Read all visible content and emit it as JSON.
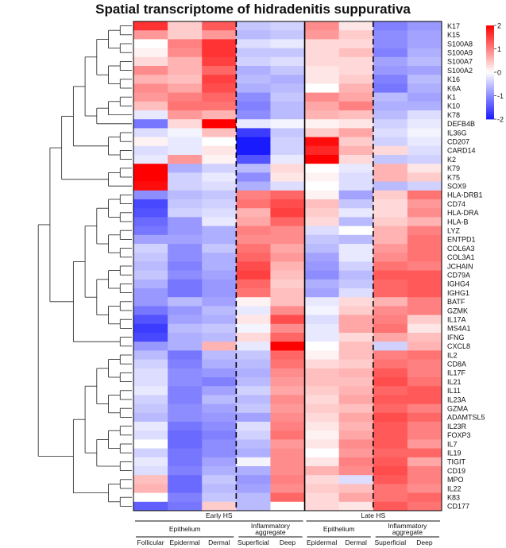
{
  "chart_data": {
    "type": "heatmap",
    "title": "Spatial transcriptome of hidradenitis suppurativa",
    "columns": [
      "Follicular",
      "Epidermal",
      "Dermal",
      "Superficial",
      "Deep",
      "Epidermal",
      "Dermal",
      "Superficial",
      "Deep"
    ],
    "column_groups": [
      {
        "name": "Early HS",
        "start": 0,
        "end": 4,
        "subgroups": [
          {
            "name": "Epithelium",
            "start": 0,
            "end": 2
          },
          {
            "name": "Inflammatory aggregate",
            "start": 3,
            "end": 4
          }
        ]
      },
      {
        "name": "Late HS",
        "start": 5,
        "end": 8,
        "subgroups": [
          {
            "name": "Epithelium",
            "start": 5,
            "end": 6
          },
          {
            "name": "Inflammatory aggregate",
            "start": 7,
            "end": 8
          }
        ]
      }
    ],
    "rows": [
      "K17",
      "K15",
      "S100A8",
      "S100A9",
      "S100A7",
      "S100A2",
      "K16",
      "K6A",
      "K1",
      "K10",
      "K78",
      "DEFB4B",
      "IL36G",
      "CD207",
      "CARD14",
      "K2",
      "K79",
      "K75",
      "SOX9",
      "HLA-DRB1",
      "CD74",
      "HLA-DRA",
      "HLA-B",
      "LYZ",
      "ENTPD1",
      "COL6A3",
      "COL3A1",
      "JCHAIN",
      "CD79A",
      "IGHG4",
      "IGHG1",
      "BATF",
      "GZMK",
      "IL17A",
      "MS4A1",
      "IFNG",
      "CXCL8",
      "IL2",
      "CD8A",
      "IL17F",
      "IL21",
      "IL11",
      "IL23A",
      "GZMA",
      "ADAMTSL5",
      "IL23R",
      "FOXP3",
      "IL7",
      "IL19",
      "TIGIT",
      "CD19",
      "MPO",
      "IL22",
      "K83",
      "CD177"
    ],
    "values": [
      [
        1.6,
        0.4,
        1.3,
        -0.5,
        -0.4,
        0.9,
        0.2,
        -1.1,
        -0.9
      ],
      [
        0.8,
        0.4,
        0.8,
        -0.6,
        -0.5,
        0.8,
        0.4,
        -1.0,
        -0.8
      ],
      [
        0.0,
        1.0,
        1.6,
        -0.3,
        -0.2,
        0.3,
        0.3,
        -1.0,
        -0.8
      ],
      [
        0.1,
        0.9,
        1.6,
        -0.5,
        -0.5,
        0.3,
        0.5,
        -1.1,
        -0.7
      ],
      [
        0.3,
        0.6,
        1.5,
        -0.4,
        -0.3,
        0.3,
        0.3,
        -0.8,
        -0.6
      ],
      [
        0.9,
        0.6,
        1.2,
        -0.7,
        -0.5,
        0.2,
        0.3,
        -0.9,
        -0.8
      ],
      [
        0.6,
        0.5,
        1.5,
        -0.6,
        -0.7,
        0.2,
        0.4,
        -1.1,
        -0.6
      ],
      [
        0.9,
        0.7,
        1.4,
        -0.7,
        -0.6,
        0.0,
        0.6,
        -1.2,
        -0.7
      ],
      [
        0.8,
        1.0,
        1.2,
        -1.0,
        -0.5,
        0.9,
        0.7,
        -0.6,
        -0.8
      ],
      [
        0.5,
        1.1,
        1.1,
        -1.1,
        -0.6,
        0.7,
        1.0,
        -0.7,
        -0.7
      ],
      [
        -0.2,
        0.8,
        0.6,
        -1.0,
        -0.6,
        0.6,
        0.5,
        -0.6,
        -0.3
      ],
      [
        -1.2,
        0.3,
        2.0,
        -0.2,
        -0.1,
        0.1,
        0.2,
        -0.4,
        -0.2
      ],
      [
        -0.3,
        -0.1,
        0.5,
        -1.7,
        -0.5,
        0.4,
        0.7,
        -0.3,
        -0.1
      ],
      [
        0.1,
        -0.2,
        0.0,
        -2.0,
        -0.4,
        1.9,
        0.4,
        -0.4,
        -0.2
      ],
      [
        -0.3,
        -0.2,
        0.2,
        -2.0,
        -0.4,
        1.7,
        0.6,
        0.3,
        -0.3
      ],
      [
        -0.2,
        0.8,
        0.1,
        -1.5,
        -0.2,
        2.0,
        0.3,
        -0.5,
        -0.4
      ],
      [
        2.0,
        -0.7,
        -0.4,
        -0.6,
        0.3,
        0.0,
        -0.2,
        0.6,
        0.2
      ],
      [
        2.0,
        -0.4,
        -0.2,
        -1.0,
        0.2,
        0.1,
        -0.3,
        0.6,
        0.4
      ],
      [
        1.9,
        -0.4,
        -0.3,
        -0.7,
        -0.3,
        0.0,
        -0.3,
        -0.6,
        -0.4
      ],
      [
        -1.0,
        -0.6,
        -0.5,
        1.0,
        1.2,
        0.1,
        -0.8,
        0.4,
        1.1
      ],
      [
        -1.6,
        -0.5,
        -0.4,
        1.1,
        1.4,
        0.5,
        -0.5,
        0.3,
        0.8
      ],
      [
        -1.5,
        -0.4,
        -0.3,
        0.6,
        1.5,
        0.4,
        -0.2,
        0.3,
        0.9
      ],
      [
        -1.3,
        -0.9,
        -0.2,
        0.7,
        1.2,
        0.3,
        -0.6,
        0.4,
        0.6
      ],
      [
        -1.2,
        -0.9,
        -0.7,
        1.0,
        0.9,
        -0.3,
        0.0,
        0.6,
        1.0
      ],
      [
        -0.8,
        -0.8,
        -0.7,
        0.9,
        0.9,
        -0.5,
        -0.6,
        0.6,
        1.1
      ],
      [
        -0.4,
        -1.0,
        -0.5,
        1.1,
        0.7,
        -0.6,
        -0.2,
        0.8,
        1.1
      ],
      [
        -0.5,
        -1.0,
        -0.7,
        1.2,
        0.8,
        -0.8,
        -0.2,
        0.9,
        1.1
      ],
      [
        -0.6,
        -1.1,
        -0.7,
        1.4,
        0.6,
        -0.9,
        -0.4,
        1.1,
        1.0
      ],
      [
        -0.5,
        -1.0,
        -0.8,
        1.5,
        0.5,
        -1.0,
        -0.6,
        1.3,
        1.3
      ],
      [
        -0.7,
        -1.2,
        -0.9,
        1.2,
        0.4,
        -0.7,
        -0.5,
        1.2,
        1.3
      ],
      [
        -0.9,
        -1.2,
        -0.9,
        1.1,
        0.5,
        -0.8,
        -0.3,
        1.2,
        1.3
      ],
      [
        -0.9,
        -0.6,
        -0.8,
        0.1,
        0.5,
        -0.2,
        0.3,
        0.6,
        1.0
      ],
      [
        -1.2,
        -0.9,
        -0.6,
        -0.2,
        0.9,
        -0.1,
        0.4,
        0.9,
        1.0
      ],
      [
        -1.5,
        -0.8,
        -0.7,
        0.2,
        1.4,
        -0.3,
        0.7,
        1.0,
        0.4
      ],
      [
        -1.7,
        -0.6,
        -0.5,
        -0.1,
        0.9,
        -0.2,
        0.7,
        1.1,
        0.2
      ],
      [
        -1.6,
        -0.7,
        -0.6,
        0.3,
        1.2,
        -0.2,
        0.3,
        0.7,
        0.5
      ],
      [
        -0.9,
        -0.7,
        0.6,
        -0.2,
        2.0,
        0.0,
        0.5,
        -0.4,
        0.6
      ],
      [
        -0.6,
        -1.2,
        -0.6,
        -0.5,
        1.2,
        0.1,
        0.5,
        1.0,
        1.1
      ],
      [
        -0.4,
        -1.1,
        -0.7,
        -0.6,
        1.1,
        0.3,
        0.4,
        1.1,
        1.0
      ],
      [
        -0.3,
        -1.0,
        -0.9,
        -0.7,
        0.9,
        0.5,
        0.6,
        1.3,
        1.0
      ],
      [
        -0.3,
        -1.0,
        -1.1,
        -0.6,
        0.8,
        0.5,
        0.5,
        1.4,
        1.1
      ],
      [
        -0.2,
        -1.1,
        -0.8,
        -0.4,
        0.7,
        0.4,
        0.6,
        1.2,
        1.3
      ],
      [
        -0.4,
        -1.1,
        -0.6,
        -0.6,
        0.9,
        0.3,
        0.7,
        1.3,
        1.3
      ],
      [
        -0.5,
        -1.0,
        -0.8,
        -0.5,
        0.8,
        0.4,
        0.5,
        1.2,
        1.0
      ],
      [
        -0.6,
        -1.0,
        -0.9,
        -0.8,
        0.9,
        0.3,
        0.7,
        1.4,
        1.2
      ],
      [
        -0.2,
        -1.2,
        -1.0,
        -0.3,
        1.0,
        0.2,
        0.6,
        1.3,
        1.0
      ],
      [
        -0.3,
        -1.3,
        -1.1,
        -0.4,
        1.1,
        0.1,
        0.7,
        1.3,
        1.0
      ],
      [
        0.0,
        -1.3,
        -1.0,
        -0.6,
        0.8,
        0.2,
        0.9,
        1.3,
        0.8
      ],
      [
        -0.4,
        -1.2,
        -1.0,
        -0.7,
        0.9,
        0.0,
        0.8,
        1.2,
        1.2
      ],
      [
        -0.2,
        -1.2,
        -0.8,
        -0.1,
        0.9,
        0.2,
        1.0,
        1.3,
        0.7
      ],
      [
        -0.3,
        -1.1,
        -0.7,
        -0.7,
        0.9,
        0.6,
        0.9,
        1.4,
        1.0
      ],
      [
        0.5,
        -1.3,
        -0.5,
        -0.9,
        1.0,
        0.3,
        -0.3,
        1.3,
        1.0
      ],
      [
        0.6,
        -1.3,
        -0.6,
        -0.8,
        0.9,
        0.4,
        0.5,
        1.1,
        0.9
      ],
      [
        0.0,
        -1.1,
        -0.5,
        -0.6,
        1.2,
        0.3,
        0.7,
        1.1,
        1.2
      ],
      [
        -1.4,
        -1.2,
        0.4,
        -0.6,
        0.0,
        0.3,
        0.2,
        1.3,
        1.1
      ]
    ],
    "colorscale": {
      "min": -2,
      "max": 2,
      "low": "#1a1aff",
      "mid": "#ffffff",
      "high": "#ff0000",
      "ticks": [
        2,
        1,
        0,
        -1,
        -2
      ]
    },
    "dendrogram": "row",
    "legend": "top-right"
  }
}
